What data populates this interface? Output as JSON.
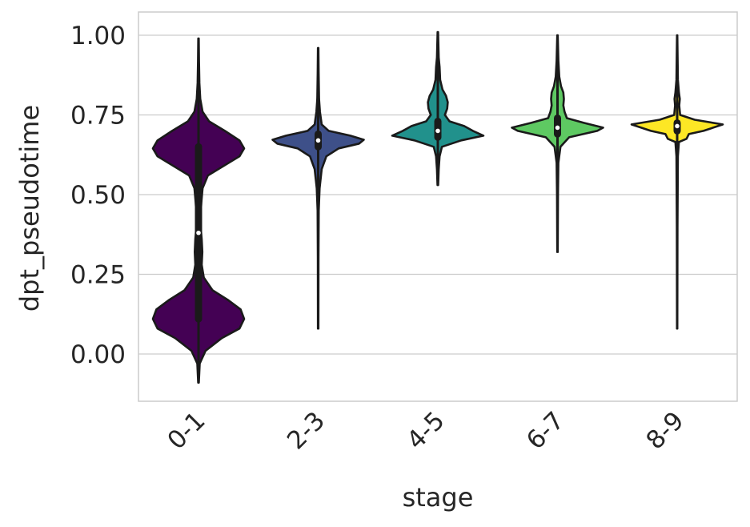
{
  "chart_data": {
    "type": "violin",
    "title": "",
    "xlabel": "stage",
    "ylabel": "dpt_pseudotime",
    "ylim": [
      -0.15,
      1.07
    ],
    "yticks": [
      0.0,
      0.25,
      0.5,
      0.75,
      1.0
    ],
    "ytick_labels": [
      "0.00",
      "0.25",
      "0.50",
      "0.75",
      "1.00"
    ],
    "grid": "horizontal",
    "legend": "none",
    "categories": [
      "0-1",
      "2-3",
      "4-5",
      "6-7",
      "8-9"
    ],
    "violins": [
      {
        "category": "0-1",
        "color": "#440154",
        "min": -0.09,
        "max": 0.99,
        "q1": 0.11,
        "median": 0.38,
        "q3": 0.65,
        "whisker_low": -0.05,
        "whisker_high": 0.97,
        "density": [
          [
            -0.09,
            0.005
          ],
          [
            -0.03,
            0.02
          ],
          [
            0.01,
            0.12
          ],
          [
            0.05,
            0.4
          ],
          [
            0.08,
            0.7
          ],
          [
            0.11,
            0.78
          ],
          [
            0.14,
            0.72
          ],
          [
            0.17,
            0.5
          ],
          [
            0.2,
            0.24
          ],
          [
            0.24,
            0.09
          ],
          [
            0.28,
            0.055
          ],
          [
            0.32,
            0.065
          ],
          [
            0.36,
            0.055
          ],
          [
            0.4,
            0.035
          ],
          [
            0.44,
            0.035
          ],
          [
            0.48,
            0.05
          ],
          [
            0.52,
            0.07
          ],
          [
            0.56,
            0.16
          ],
          [
            0.6,
            0.52
          ],
          [
            0.62,
            0.7
          ],
          [
            0.645,
            0.78
          ],
          [
            0.67,
            0.7
          ],
          [
            0.7,
            0.45
          ],
          [
            0.73,
            0.18
          ],
          [
            0.76,
            0.07
          ],
          [
            0.8,
            0.03
          ],
          [
            0.85,
            0.015
          ],
          [
            0.92,
            0.008
          ],
          [
            0.99,
            0.004
          ]
        ]
      },
      {
        "category": "2-3",
        "color": "#3e5089",
        "min": 0.08,
        "max": 0.96,
        "q1": 0.65,
        "median": 0.67,
        "q3": 0.69,
        "whisker_low": 0.6,
        "whisker_high": 0.72,
        "density": [
          [
            0.08,
            0.004
          ],
          [
            0.3,
            0.006
          ],
          [
            0.45,
            0.01
          ],
          [
            0.52,
            0.025
          ],
          [
            0.58,
            0.06
          ],
          [
            0.62,
            0.14
          ],
          [
            0.645,
            0.35
          ],
          [
            0.66,
            0.7
          ],
          [
            0.672,
            0.78
          ],
          [
            0.685,
            0.55
          ],
          [
            0.7,
            0.18
          ],
          [
            0.72,
            0.06
          ],
          [
            0.76,
            0.03
          ],
          [
            0.8,
            0.015
          ],
          [
            0.88,
            0.008
          ],
          [
            0.96,
            0.004
          ]
        ]
      },
      {
        "category": "4-5",
        "color": "#21918c",
        "min": 0.53,
        "max": 1.01,
        "q1": 0.68,
        "median": 0.7,
        "q3": 0.73,
        "whisker_low": 0.6,
        "whisker_high": 0.77,
        "density": [
          [
            0.53,
            0.005
          ],
          [
            0.58,
            0.015
          ],
          [
            0.62,
            0.03
          ],
          [
            0.65,
            0.07
          ],
          [
            0.67,
            0.4
          ],
          [
            0.685,
            0.78
          ],
          [
            0.7,
            0.6
          ],
          [
            0.715,
            0.45
          ],
          [
            0.73,
            0.2
          ],
          [
            0.75,
            0.12
          ],
          [
            0.77,
            0.16
          ],
          [
            0.79,
            0.17
          ],
          [
            0.81,
            0.14
          ],
          [
            0.83,
            0.08
          ],
          [
            0.86,
            0.04
          ],
          [
            0.9,
            0.03
          ],
          [
            0.93,
            0.015
          ],
          [
            1.01,
            0.004
          ]
        ]
      },
      {
        "category": "6-7",
        "color": "#5ec962",
        "min": 0.32,
        "max": 1.0,
        "q1": 0.69,
        "median": 0.71,
        "q3": 0.74,
        "whisker_low": 0.63,
        "whisker_high": 0.79,
        "density": [
          [
            0.32,
            0.004
          ],
          [
            0.5,
            0.008
          ],
          [
            0.6,
            0.015
          ],
          [
            0.65,
            0.05
          ],
          [
            0.68,
            0.2
          ],
          [
            0.7,
            0.68
          ],
          [
            0.71,
            0.78
          ],
          [
            0.725,
            0.45
          ],
          [
            0.74,
            0.16
          ],
          [
            0.76,
            0.12
          ],
          [
            0.78,
            0.1
          ],
          [
            0.8,
            0.11
          ],
          [
            0.82,
            0.1
          ],
          [
            0.84,
            0.06
          ],
          [
            0.87,
            0.03
          ],
          [
            0.92,
            0.015
          ],
          [
            1.0,
            0.004
          ]
        ]
      },
      {
        "category": "8-9",
        "color": "#fde725",
        "min": 0.08,
        "max": 1.0,
        "q1": 0.7,
        "median": 0.715,
        "q3": 0.725,
        "whisker_low": 0.67,
        "whisker_high": 0.76,
        "density": [
          [
            0.08,
            0.003
          ],
          [
            0.4,
            0.006
          ],
          [
            0.62,
            0.012
          ],
          [
            0.665,
            0.03
          ],
          [
            0.675,
            0.16
          ],
          [
            0.69,
            0.2
          ],
          [
            0.7,
            0.45
          ],
          [
            0.72,
            0.78
          ],
          [
            0.735,
            0.3
          ],
          [
            0.75,
            0.05
          ],
          [
            0.78,
            0.035
          ],
          [
            0.8,
            0.045
          ],
          [
            0.82,
            0.03
          ],
          [
            0.86,
            0.012
          ],
          [
            1.0,
            0.003
          ]
        ]
      }
    ]
  }
}
